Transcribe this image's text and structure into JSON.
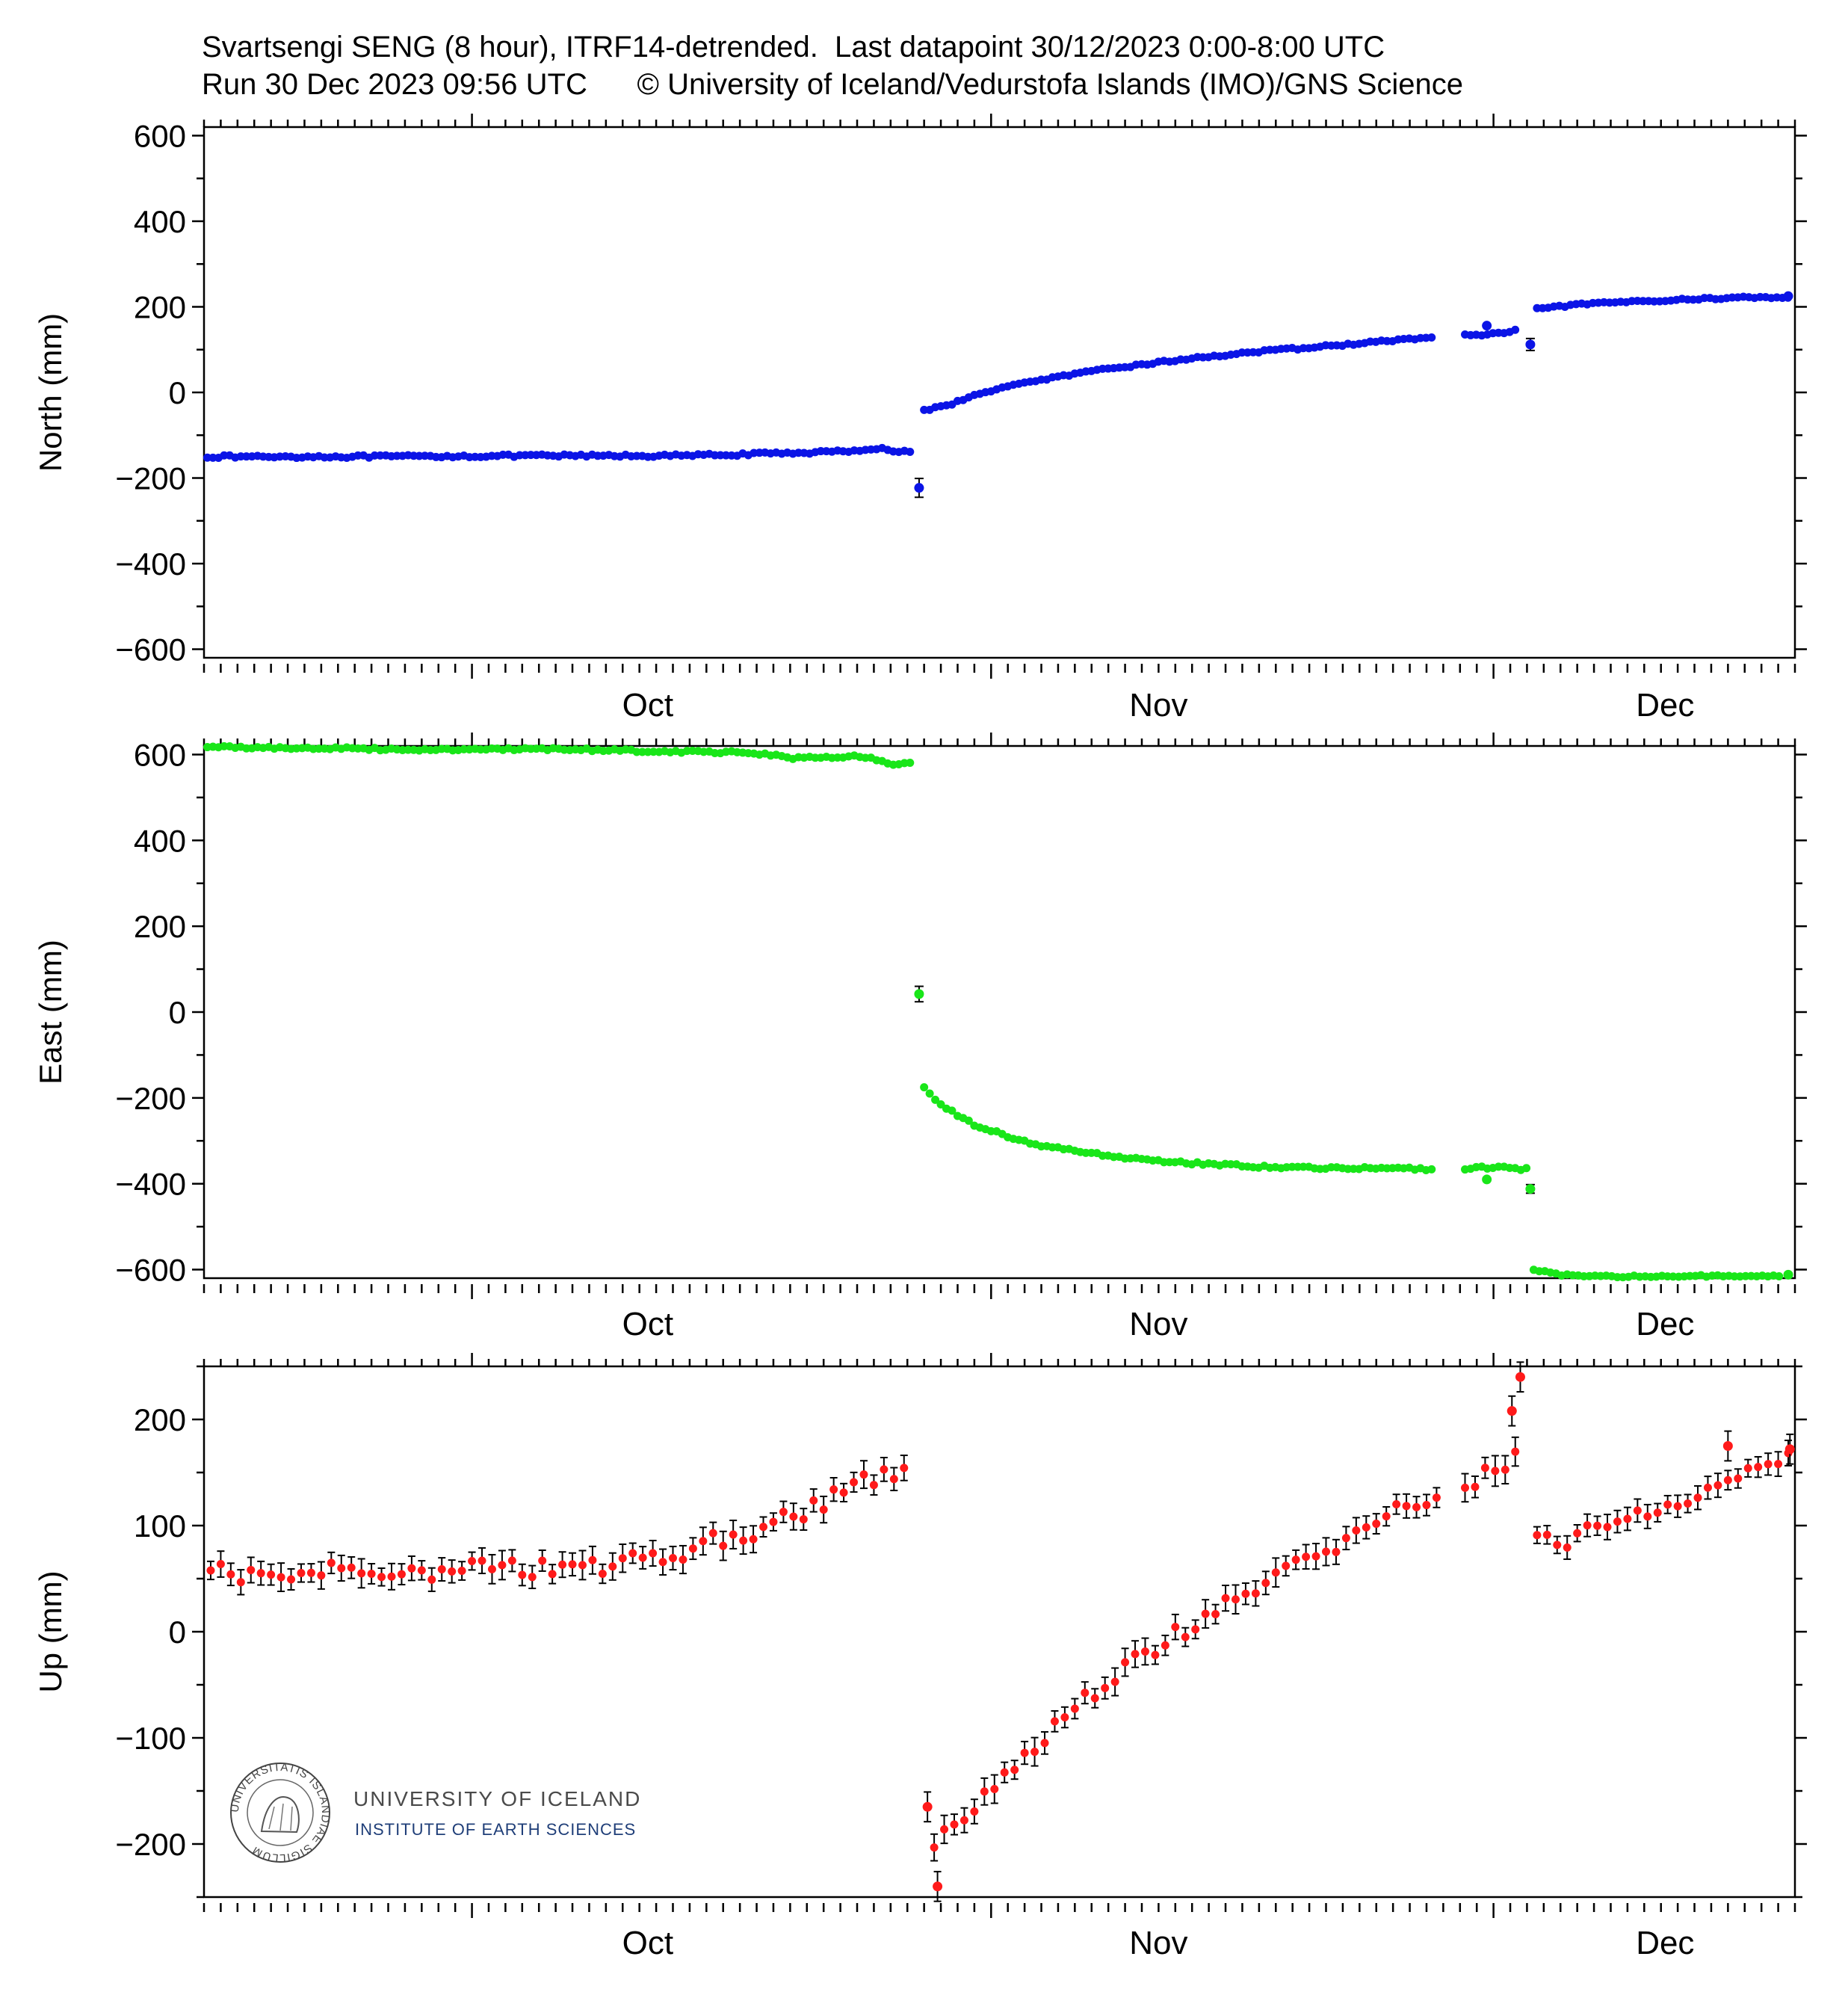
{
  "header": {
    "line1": "Svartsengi SENG (8 hour), ITRF14-detrended.  Last datapoint 30/12/2023 0:00-8:00 UTC",
    "line2": "Run 30 Dec 2023 09:56 UTC      © University of Iceland/Vedurstofa Islands (IMO)/GNS Science"
  },
  "logo": {
    "university": "UNIVERSITY OF ICELAND",
    "institute": "INSTITUTE OF EARTH SCIENCES",
    "seal_text": "UNIVERSITATIS ISLANDIAE SIGILLUM"
  },
  "colors": {
    "north": "#0b14e6",
    "east": "#19e619",
    "up": "#ff1a1a",
    "errorbar": "#000000"
  },
  "chart_data": [
    {
      "type": "scatter",
      "name": "north",
      "ylabel": "North (mm)",
      "ylim": [
        -620,
        620
      ],
      "yticks": [
        600,
        400,
        200,
        0,
        -200,
        -400,
        -600
      ],
      "ytick_labels": [
        "600",
        "400",
        "200",
        "0",
        "−200",
        "−400",
        "−600"
      ],
      "x_unit": "day of year 2023",
      "xlim": [
        258,
        353
      ],
      "month_ticks": [
        {
          "day": 274,
          "label": "Oct"
        },
        {
          "day": 305,
          "label": "Nov"
        },
        {
          "day": 335,
          "label": "Dec"
        }
      ],
      "segments": [
        {
          "start": 258.2,
          "end": 300.3,
          "step": 0.333,
          "points": [
            [
              258.2,
              -150
            ],
            [
              268,
              -150
            ],
            [
              278,
              -148
            ],
            [
              286,
              -148
            ],
            [
              290,
              -145
            ],
            [
              296,
              -138
            ],
            [
              298.5,
              -130
            ],
            [
              299,
              -138
            ],
            [
              300.3,
              -138
            ]
          ],
          "noise": 3
        },
        {
          "start": 301.0,
          "end": 331.6,
          "step": 0.333,
          "points": [
            [
              301.0,
              -42
            ],
            [
              302.5,
              -28
            ],
            [
              305,
              5
            ],
            [
              308,
              30
            ],
            [
              312,
              55
            ],
            [
              316,
              75
            ],
            [
              320,
              92
            ],
            [
              325,
              108
            ],
            [
              331.6,
              130
            ]
          ],
          "noise": 2.5
        },
        {
          "start": 333.3,
          "end": 336.6,
          "step": 0.333,
          "points": [
            [
              333.3,
              133
            ],
            [
              335,
              136
            ],
            [
              336.6,
              145
            ]
          ],
          "noise": 3
        },
        {
          "start": 337.6,
          "end": 352.6,
          "step": 0.333,
          "points": [
            [
              337.6,
              195
            ],
            [
              340,
              205
            ],
            [
              343,
              212
            ],
            [
              347,
              218
            ],
            [
              350,
              222
            ]
          ],
          "noise": 2
        }
      ],
      "extra_points": [
        [
          300.7,
          -223
        ],
        [
          334.6,
          156
        ],
        [
          337.2,
          112
        ],
        [
          352.6,
          225
        ]
      ],
      "error_bars": [
        [
          300.7,
          -223,
          22
        ],
        [
          337.2,
          112,
          14
        ]
      ]
    },
    {
      "type": "scatter",
      "name": "east",
      "ylabel": "East (mm)",
      "ylim": [
        -620,
        620
      ],
      "yticks": [
        600,
        400,
        200,
        0,
        -200,
        -400,
        -600
      ],
      "ytick_labels": [
        "600",
        "400",
        "200",
        "0",
        "−200",
        "−400",
        "−600"
      ],
      "x_unit": "day of year 2023",
      "xlim": [
        258,
        353
      ],
      "month_ticks": [
        {
          "day": 274,
          "label": "Oct"
        },
        {
          "day": 305,
          "label": "Nov"
        },
        {
          "day": 335,
          "label": "Dec"
        }
      ],
      "segments": [
        {
          "start": 258.2,
          "end": 300.4,
          "step": 0.333,
          "points": [
            [
              258.2,
              618
            ],
            [
              270,
              612
            ],
            [
              280,
              612
            ],
            [
              285,
              608
            ],
            [
              290,
              605
            ],
            [
              292,
              600
            ],
            [
              293,
              592
            ],
            [
              297,
              595
            ],
            [
              298,
              590
            ],
            [
              299,
              578
            ],
            [
              300.4,
              580
            ]
          ],
          "noise": 3
        },
        {
          "start": 301.0,
          "end": 331.6,
          "step": 0.333,
          "points": [
            [
              301.0,
              -178
            ],
            [
              302,
              -218
            ],
            [
              304,
              -262
            ],
            [
              306,
              -290
            ],
            [
              308,
              -312
            ],
            [
              312,
              -335
            ],
            [
              316,
              -350
            ],
            [
              322,
              -362
            ],
            [
              331.6,
              -366
            ]
          ],
          "noise": 3
        },
        {
          "start": 333.3,
          "end": 337.0,
          "step": 0.333,
          "points": [
            [
              333.3,
              -364
            ],
            [
              337.0,
              -364
            ]
          ],
          "noise": 4
        },
        {
          "start": 337.4,
          "end": 352.3,
          "step": 0.333,
          "points": [
            [
              337.4,
              -600
            ],
            [
              339,
              -612
            ],
            [
              342,
              -616
            ],
            [
              352.3,
              -614
            ]
          ],
          "noise": 2
        }
      ],
      "extra_points": [
        [
          300.7,
          42
        ],
        [
          334.6,
          -390
        ],
        [
          337.2,
          -412
        ],
        [
          352.6,
          -612
        ]
      ],
      "error_bars": [
        [
          300.7,
          42,
          18
        ],
        [
          337.2,
          -412,
          10
        ]
      ]
    },
    {
      "type": "scatter",
      "name": "up",
      "ylabel": "Up (mm)",
      "ylim": [
        -250,
        250
      ],
      "yticks": [
        200,
        100,
        0,
        -100,
        -200
      ],
      "ytick_labels": [
        "200",
        "100",
        "0",
        "−100",
        "−200"
      ],
      "x_unit": "day of year 2023",
      "xlim": [
        258,
        353
      ],
      "month_ticks": [
        {
          "day": 274,
          "label": "Oct"
        },
        {
          "day": 305,
          "label": "Nov"
        },
        {
          "day": 335,
          "label": "Dec"
        }
      ],
      "with_error_bars": true,
      "segments": [
        {
          "start": 258.4,
          "end": 300.3,
          "step": 0.6,
          "points": [
            [
              258.4,
              55
            ],
            [
              270,
              58
            ],
            [
              280,
              58
            ],
            [
              285,
              68
            ],
            [
              290,
              92
            ],
            [
              294,
              112
            ],
            [
              297,
              138
            ],
            [
              300.3,
              155
            ]
          ],
          "noise": 9,
          "err": 11
        },
        {
          "start": 301.6,
          "end": 331.6,
          "step": 0.6,
          "points": [
            [
              301.6,
              -200
            ],
            [
              303,
              -175
            ],
            [
              305,
              -150
            ],
            [
              308,
              -100
            ],
            [
              310,
              -70
            ],
            [
              312,
              -45
            ],
            [
              315,
              -12
            ],
            [
              318,
              15
            ],
            [
              321,
              45
            ],
            [
              325,
              75
            ],
            [
              328,
              105
            ],
            [
              331.6,
              128
            ]
          ],
          "noise": 8,
          "err": 11
        },
        {
          "start": 333.3,
          "end": 336.7,
          "step": 0.6,
          "points": [
            [
              333.3,
              140
            ],
            [
              335,
              148
            ],
            [
              336.7,
              165
            ]
          ],
          "noise": 10,
          "err": 12
        },
        {
          "start": 337.6,
          "end": 352.6,
          "step": 0.6,
          "points": [
            [
              337.6,
              90
            ],
            [
              339,
              80
            ],
            [
              341,
              100
            ],
            [
              344,
              112
            ],
            [
              347,
              128
            ],
            [
              349,
              143
            ],
            [
              352.6,
              165
            ]
          ],
          "noise": 6,
          "err": 10
        }
      ],
      "extra_points": [
        [
          301.2,
          -165
        ],
        [
          301.8,
          -240
        ],
        [
          336.1,
          208
        ],
        [
          336.6,
          240
        ],
        [
          349.0,
          175
        ],
        [
          352.7,
          172
        ]
      ],
      "error_bars": []
    }
  ]
}
